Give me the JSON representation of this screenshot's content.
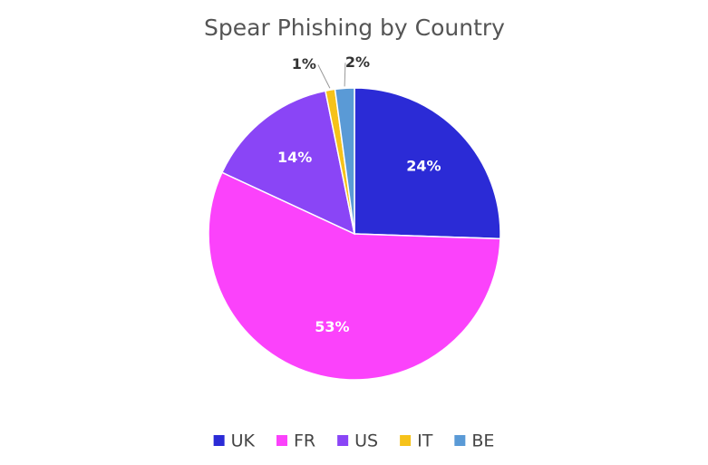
{
  "chart_data": {
    "type": "pie",
    "title": "Spear Phishing by Country",
    "categories": [
      "UK",
      "FR",
      "US",
      "IT",
      "BE"
    ],
    "values": [
      24,
      53,
      14,
      1,
      2
    ],
    "value_labels": [
      "24%",
      "53%",
      "14%",
      "1%",
      "2%"
    ],
    "colors": [
      "#2b2bd6",
      "#fb42fb",
      "#8a45f6",
      "#f6c21a",
      "#5a9ad6"
    ],
    "legend": "bottom"
  }
}
